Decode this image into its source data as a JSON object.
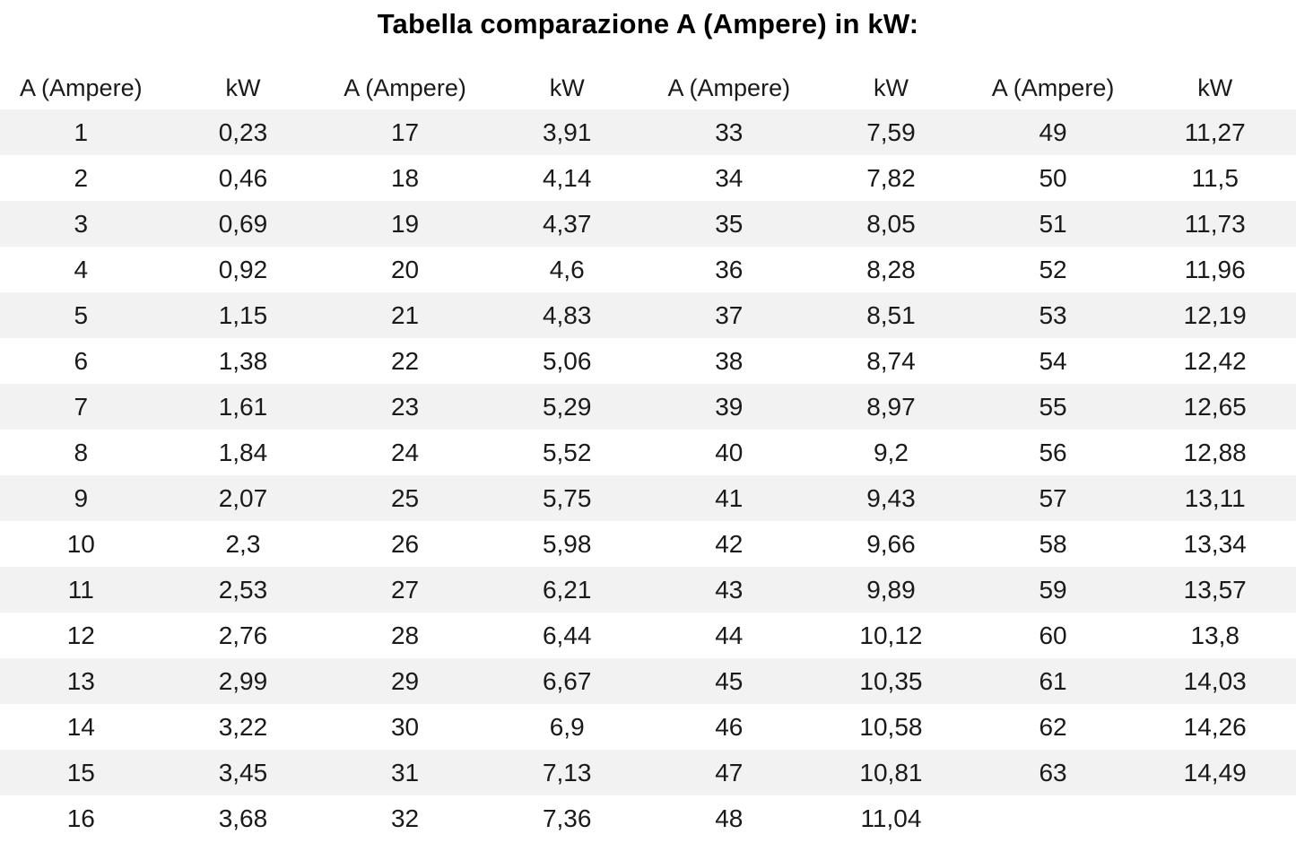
{
  "page": {
    "title": "Tabella comparazione A (Ampere) in kW:"
  },
  "table": {
    "headers": [
      "A (Ampere)",
      "kW",
      "A (Ampere)",
      "kW",
      "A (Ampere)",
      "kW",
      "A (Ampere)",
      "kW"
    ],
    "rows": [
      [
        "1",
        "0,23",
        "17",
        "3,91",
        "33",
        "7,59",
        "49",
        "11,27"
      ],
      [
        "2",
        "0,46",
        "18",
        "4,14",
        "34",
        "7,82",
        "50",
        "11,5"
      ],
      [
        "3",
        "0,69",
        "19",
        "4,37",
        "35",
        "8,05",
        "51",
        "11,73"
      ],
      [
        "4",
        "0,92",
        "20",
        "4,6",
        "36",
        "8,28",
        "52",
        "11,96"
      ],
      [
        "5",
        "1,15",
        "21",
        "4,83",
        "37",
        "8,51",
        "53",
        "12,19"
      ],
      [
        "6",
        "1,38",
        "22",
        "5,06",
        "38",
        "8,74",
        "54",
        "12,42"
      ],
      [
        "7",
        "1,61",
        "23",
        "5,29",
        "39",
        "8,97",
        "55",
        "12,65"
      ],
      [
        "8",
        "1,84",
        "24",
        "5,52",
        "40",
        "9,2",
        "56",
        "12,88"
      ],
      [
        "9",
        "2,07",
        "25",
        "5,75",
        "41",
        "9,43",
        "57",
        "13,11"
      ],
      [
        "10",
        "2,3",
        "26",
        "5,98",
        "42",
        "9,66",
        "58",
        "13,34"
      ],
      [
        "11",
        "2,53",
        "27",
        "6,21",
        "43",
        "9,89",
        "59",
        "13,57"
      ],
      [
        "12",
        "2,76",
        "28",
        "6,44",
        "44",
        "10,12",
        "60",
        "13,8"
      ],
      [
        "13",
        "2,99",
        "29",
        "6,67",
        "45",
        "10,35",
        "61",
        "14,03"
      ],
      [
        "14",
        "3,22",
        "30",
        "6,9",
        "46",
        "10,58",
        "62",
        "14,26"
      ],
      [
        "15",
        "3,45",
        "31",
        "7,13",
        "47",
        "10,81",
        "63",
        "14,49"
      ],
      [
        "16",
        "3,68",
        "32",
        "7,36",
        "48",
        "11,04",
        "",
        ""
      ]
    ],
    "stripe_color": "#f2f2f2",
    "text_color": "#1a1a1a",
    "background_color": "#ffffff"
  }
}
